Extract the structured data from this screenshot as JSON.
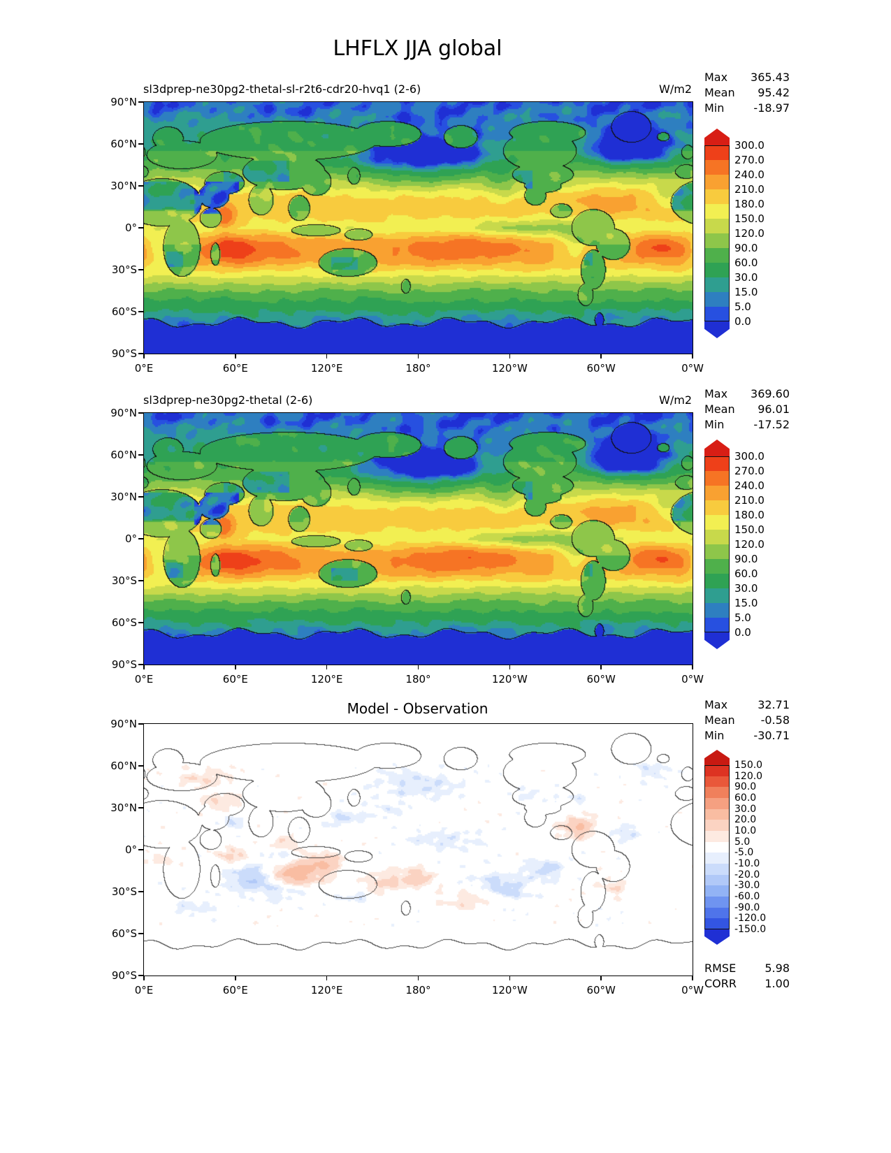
{
  "title": "LHFLX JJA global",
  "labels": {
    "max": "Max",
    "mean": "Mean",
    "min": "Min",
    "rmse": "RMSE",
    "corr": "CORR"
  },
  "axes": {
    "lat_ticks": [
      "90°N",
      "60°N",
      "30°N",
      "0°",
      "30°S",
      "60°S",
      "90°S"
    ],
    "lon_ticks": [
      "0°E",
      "60°E",
      "120°E",
      "180°",
      "120°W",
      "60°W",
      "0°W"
    ]
  },
  "panels": [
    {
      "title": "sl3dprep-ne30pg2-thetal-sl-r2t6-cdr20-hvq1 (2-6)",
      "units": "W/m2",
      "stats": {
        "max": "365.43",
        "mean": "95.42",
        "min": "-18.97"
      },
      "colorbar_labels": [
        "300.0",
        "270.0",
        "240.0",
        "210.0",
        "180.0",
        "150.0",
        "120.0",
        "90.0",
        "60.0",
        "30.0",
        "15.0",
        "5.0",
        "0.0"
      ]
    },
    {
      "title": "sl3dprep-ne30pg2-thetal (2-6)",
      "units": "W/m2",
      "stats": {
        "max": "369.60",
        "mean": "96.01",
        "min": "-17.52"
      },
      "colorbar_labels": [
        "300.0",
        "270.0",
        "240.0",
        "210.0",
        "180.0",
        "150.0",
        "120.0",
        "90.0",
        "60.0",
        "30.0",
        "15.0",
        "5.0",
        "0.0"
      ]
    },
    {
      "title": "Model - Observation",
      "units": "",
      "stats": {
        "max": "32.71",
        "mean": "-0.58",
        "min": "-30.71"
      },
      "metrics": {
        "rmse": "5.98",
        "corr": "1.00"
      },
      "colorbar_labels": [
        "150.0",
        "120.0",
        "90.0",
        "60.0",
        "30.0",
        "20.0",
        "10.0",
        "5.0",
        "-5.0",
        "-10.0",
        "-20.0",
        "-30.0",
        "-60.0",
        "-90.0",
        "-120.0",
        "-150.0"
      ]
    }
  ],
  "chart_data": [
    {
      "type": "heatmap",
      "render": "filled_contour_world_map",
      "variable": "LHFLX",
      "season": "JJA",
      "region": "global",
      "title": "sl3dprep-ne30pg2-thetal-sl-r2t6-cdr20-hvq1 (2-6)",
      "units": "W/m2",
      "projection": "equirectangular",
      "lon_domain": [
        0,
        360
      ],
      "lat_domain": [
        -90,
        90
      ],
      "stats": {
        "max": 365.43,
        "mean": 95.42,
        "min": -18.97
      },
      "contour_levels": [
        0,
        5,
        15,
        30,
        60,
        90,
        120,
        150,
        180,
        210,
        240,
        270,
        300
      ],
      "extend": "both",
      "colors": [
        "#1f2fd4",
        "#2750e0",
        "#2e7fc0",
        "#2f9e90",
        "#2fa254",
        "#4fb04b",
        "#8ec64a",
        "#c8d94b",
        "#f2ef52",
        "#f8cb3e",
        "#f9a131",
        "#f67424",
        "#ee4019",
        "#d81e15"
      ]
    },
    {
      "type": "heatmap",
      "render": "filled_contour_world_map",
      "variable": "LHFLX",
      "season": "JJA",
      "region": "global",
      "title": "sl3dprep-ne30pg2-thetal (2-6)",
      "units": "W/m2",
      "projection": "equirectangular",
      "lon_domain": [
        0,
        360
      ],
      "lat_domain": [
        -90,
        90
      ],
      "stats": {
        "max": 369.6,
        "mean": 96.01,
        "min": -17.52
      },
      "contour_levels": [
        0,
        5,
        15,
        30,
        60,
        90,
        120,
        150,
        180,
        210,
        240,
        270,
        300
      ],
      "extend": "both",
      "colors": [
        "#1f2fd4",
        "#2750e0",
        "#2e7fc0",
        "#2f9e90",
        "#2fa254",
        "#4fb04b",
        "#8ec64a",
        "#c8d94b",
        "#f2ef52",
        "#f8cb3e",
        "#f9a131",
        "#f67424",
        "#ee4019",
        "#d81e15"
      ]
    },
    {
      "type": "heatmap",
      "render": "filled_contour_world_map_difference",
      "variable": "LHFLX",
      "season": "JJA",
      "region": "global",
      "title": "Model - Observation",
      "units": "W/m2",
      "projection": "equirectangular",
      "lon_domain": [
        0,
        360
      ],
      "lat_domain": [
        -90,
        90
      ],
      "stats": {
        "max": 32.71,
        "mean": -0.58,
        "min": -30.71
      },
      "metrics": {
        "rmse": 5.98,
        "corr": 1.0
      },
      "contour_levels": [
        -150,
        -120,
        -90,
        -60,
        -30,
        -20,
        -10,
        -5,
        5,
        10,
        20,
        30,
        60,
        90,
        120,
        150
      ],
      "extend": "both",
      "colors": [
        "#1f2fd4",
        "#3355e2",
        "#4f74ea",
        "#6f94f0",
        "#92b3f5",
        "#b1c9f8",
        "#cbdcfb",
        "#e7effd",
        "#ffffff",
        "#fdeae1",
        "#fbd3c2",
        "#f9bda2",
        "#f5a081",
        "#f0805c",
        "#e9583a",
        "#dd3322",
        "#c81a12"
      ]
    }
  ]
}
